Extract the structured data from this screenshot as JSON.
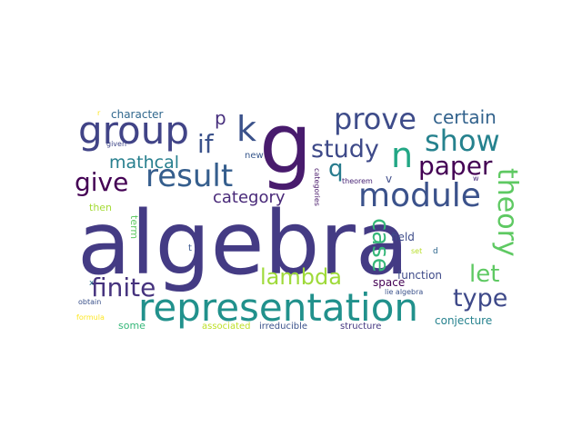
{
  "words": [
    {
      "text": "algebra",
      "color": "#443b84"
    },
    {
      "text": "g",
      "color": "#481b6d"
    },
    {
      "text": "representation",
      "color": "#21918c"
    },
    {
      "text": "module",
      "color": "#3b528b"
    },
    {
      "text": "group",
      "color": "#414487"
    },
    {
      "text": "prove",
      "color": "#3e4c8a"
    },
    {
      "text": "show",
      "color": "#26828e"
    },
    {
      "text": "theory",
      "color": "#5ec962"
    },
    {
      "text": "result",
      "color": "#355e8d"
    },
    {
      "text": "paper",
      "color": "#440154"
    },
    {
      "text": "finite",
      "color": "#46337e"
    },
    {
      "text": "study",
      "color": "#3e4a89"
    },
    {
      "text": "give",
      "color": "#440154"
    },
    {
      "text": "n",
      "color": "#22a785"
    },
    {
      "text": "k",
      "color": "#3b528b"
    },
    {
      "text": "if",
      "color": "#3b528b"
    },
    {
      "text": "lambda",
      "color": "#9fda3a"
    },
    {
      "text": "case",
      "color": "#35b779"
    },
    {
      "text": "let",
      "color": "#5ec962"
    },
    {
      "text": "type",
      "color": "#3e4989"
    },
    {
      "text": "certain",
      "color": "#33638d"
    },
    {
      "text": "mathcal",
      "color": "#277f8e"
    },
    {
      "text": "category",
      "color": "#482878"
    },
    {
      "text": "q",
      "color": "#287c8e"
    },
    {
      "text": "p",
      "color": "#472f7d"
    },
    {
      "text": "character",
      "color": "#31688e"
    },
    {
      "text": "field",
      "color": "#3e4c8a"
    },
    {
      "text": "function",
      "color": "#3e4a89"
    },
    {
      "text": "space",
      "color": "#440154"
    },
    {
      "text": "conjecture",
      "color": "#26828e"
    },
    {
      "text": "structure",
      "color": "#453781"
    },
    {
      "text": "irreducible",
      "color": "#3b528b"
    },
    {
      "text": "associated",
      "color": "#bddf26"
    },
    {
      "text": "some",
      "color": "#35b779"
    },
    {
      "text": "term",
      "color": "#5ec962"
    },
    {
      "text": "then",
      "color": "#a5db36"
    },
    {
      "text": "new",
      "color": "#38588c"
    },
    {
      "text": "v",
      "color": "#3e4c8a"
    },
    {
      "text": "categories",
      "color": "#48186a"
    },
    {
      "text": "theorem",
      "color": "#482475"
    },
    {
      "text": "w",
      "color": "#482878"
    },
    {
      "text": "given",
      "color": "#3f4788"
    },
    {
      "text": "r",
      "color": "#fde725"
    },
    {
      "text": "t",
      "color": "#39568c"
    },
    {
      "text": "x",
      "color": "#2c728e"
    },
    {
      "text": "d",
      "color": "#31688e"
    },
    {
      "text": "set",
      "color": "#b8de29"
    },
    {
      "text": "lie algebra",
      "color": "#3b528b"
    },
    {
      "text": "obtain",
      "color": "#3b528b"
    },
    {
      "text": "formula",
      "color": "#fde725"
    }
  ]
}
